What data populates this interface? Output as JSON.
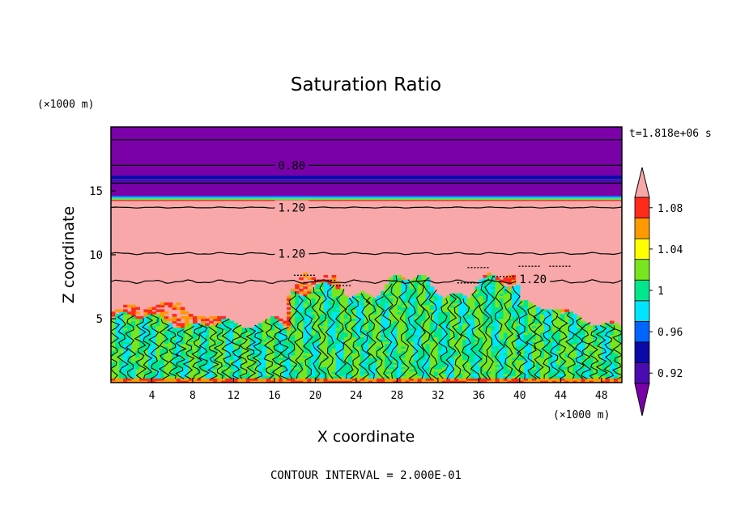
{
  "chart_data": {
    "type": "heatmap",
    "title": "Saturation Ratio",
    "xlabel": "X coordinate",
    "ylabel": "Z coordinate",
    "x_unit": "(×1000 m)",
    "z_unit": "(×1000 m)",
    "time_label": "t=1.818e+06 s",
    "footer": "CONTOUR INTERVAL = 2.000E-01",
    "xlim": [
      0,
      50
    ],
    "ylim": [
      0,
      20
    ],
    "x_ticks": [
      4,
      8,
      12,
      16,
      20,
      24,
      28,
      32,
      36,
      40,
      44,
      48
    ],
    "y_ticks": [
      5,
      10,
      15
    ],
    "colorbar": {
      "levels": [
        {
          "value": "0.90",
          "color": "#7a00a8"
        },
        {
          "value": "0.92",
          "color": "#4a0cb0"
        },
        {
          "value": "0.94",
          "color": "#0a0aa8"
        },
        {
          "value": "0.96",
          "color": "#0064ff"
        },
        {
          "value": "0.98",
          "color": "#00e5ff"
        },
        {
          "value": "1",
          "color": "#00e68c"
        },
        {
          "value": "1.02",
          "color": "#78e61e"
        },
        {
          "value": "1.04",
          "color": "#ffff00"
        },
        {
          "value": "1.06",
          "color": "#ff9900"
        },
        {
          "value": "1.08",
          "color": "#ff2a1a"
        },
        {
          "value": "1.10",
          "color": "#f8a8a8"
        }
      ],
      "tick_labels": [
        "0.92",
        "0.96",
        "1",
        "1.04",
        "1.08"
      ]
    },
    "contour_labels": [
      {
        "text": "0.80",
        "x": 17.7,
        "z": 17.0
      },
      {
        "text": "1.20",
        "x": 17.7,
        "z": 13.7
      },
      {
        "text": "1.20",
        "x": 17.7,
        "z": 10.1
      },
      {
        "text": "1.20",
        "x": 41.3,
        "z": 8.1
      }
    ]
  }
}
